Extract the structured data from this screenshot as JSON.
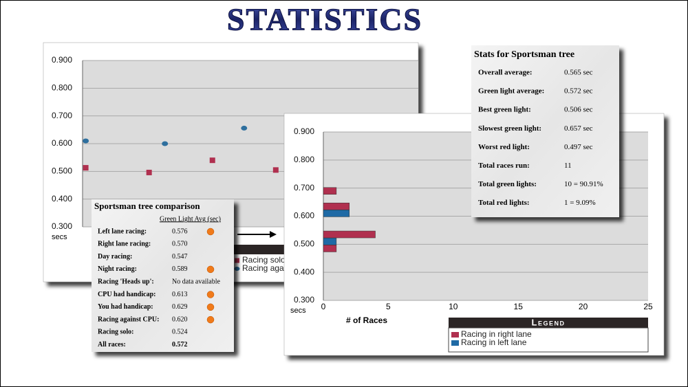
{
  "title": "STATISTICS",
  "chart_data": [
    {
      "type": "scatter",
      "ylim": [
        0.3,
        0.9
      ],
      "yticks": [
        {
          "value": 0.3,
          "label": "0.300"
        },
        {
          "value": 0.4,
          "label": "0.400"
        },
        {
          "value": 0.5,
          "label": "0.500"
        },
        {
          "value": 0.6,
          "label": "0.600"
        },
        {
          "value": 0.7,
          "label": "0.700"
        },
        {
          "value": 0.8,
          "label": "0.800"
        },
        {
          "value": 0.9,
          "label": "0.900"
        }
      ],
      "y_unit": "secs",
      "xlim": [
        0.95,
        6.25
      ],
      "grid": true,
      "series": [
        {
          "name": "Racing solo",
          "color": "#b0304f",
          "marker": "square",
          "x": [
            1,
            2,
            3,
            4
          ],
          "values": [
            0.513,
            0.496,
            0.54,
            0.505
          ]
        },
        {
          "name": "Racing against CPU",
          "color": "#2e6f9e",
          "marker": "circle",
          "x": [
            1,
            2.25,
            3.5
          ],
          "values": [
            0.61,
            0.6,
            0.656
          ]
        }
      ]
    },
    {
      "type": "hbar",
      "ylim": [
        0.3,
        0.9
      ],
      "yticks": [
        {
          "value": 0.3,
          "label": "0.300"
        },
        {
          "value": 0.4,
          "label": "0.400"
        },
        {
          "value": 0.5,
          "label": "0.500"
        },
        {
          "value": 0.6,
          "label": "0.600"
        },
        {
          "value": 0.7,
          "label": "0.700"
        },
        {
          "value": 0.8,
          "label": "0.800"
        },
        {
          "value": 0.9,
          "label": "0.900"
        }
      ],
      "y_unit": "secs",
      "x_label": "# of Races",
      "xlim": [
        0,
        25
      ],
      "xticks": [
        0,
        5,
        10,
        15,
        20,
        25
      ],
      "grid": true,
      "legend_title": "Legend",
      "series": [
        {
          "name": "Racing in right lane",
          "color": "#b0304f",
          "y": [
            0.69,
            0.635,
            0.535,
            0.485
          ],
          "values": [
            1,
            2,
            4,
            1
          ]
        },
        {
          "name": "Racing in left lane",
          "color": "#1f6aa5",
          "y": [
            0.61,
            0.51
          ],
          "values": [
            2,
            1
          ]
        }
      ]
    }
  ],
  "comparison": {
    "title": "Sportsman tree comparison",
    "column_header": "Green Light Avg (sec)",
    "marker_color": "#f07a1a",
    "rows": [
      {
        "label": "Left lane racing:",
        "value": "0.576",
        "marked": true
      },
      {
        "label": "Right lane racing:",
        "value": "0.570",
        "marked": false
      },
      {
        "label": "Day racing:",
        "value": "0.547",
        "marked": false
      },
      {
        "label": "Night racing:",
        "value": "0.589",
        "marked": true
      },
      {
        "label": "Racing 'Heads up':",
        "value": "No data available",
        "marked": false
      },
      {
        "label": "CPU had handicap:",
        "value": "0.613",
        "marked": true
      },
      {
        "label": "You had handicap:",
        "value": "0.629",
        "marked": true
      },
      {
        "label": "Racing against CPU:",
        "value": "0.620",
        "marked": true
      },
      {
        "label": "Racing solo:",
        "value": "0.524",
        "marked": false
      },
      {
        "label": "All races:",
        "value": "0.572",
        "marked": false
      }
    ]
  },
  "stats": {
    "title": "Stats for Sportsman tree",
    "rows": [
      {
        "label": "Overall average:",
        "value": "0.565 sec"
      },
      {
        "label": "Green light average:",
        "value": "0.572 sec"
      },
      {
        "label": "Best green light:",
        "value": "0.506 sec"
      },
      {
        "label": "Slowest green light:",
        "value": "0.657 sec"
      },
      {
        "label": "Worst red light:",
        "value": "0.497 sec"
      },
      {
        "label": "Total races run:",
        "value": "11"
      },
      {
        "label": "Total green lights:",
        "value": "10 = 90.91%"
      },
      {
        "label": "Total red lights:",
        "value": "1 = 9.09%"
      }
    ]
  }
}
